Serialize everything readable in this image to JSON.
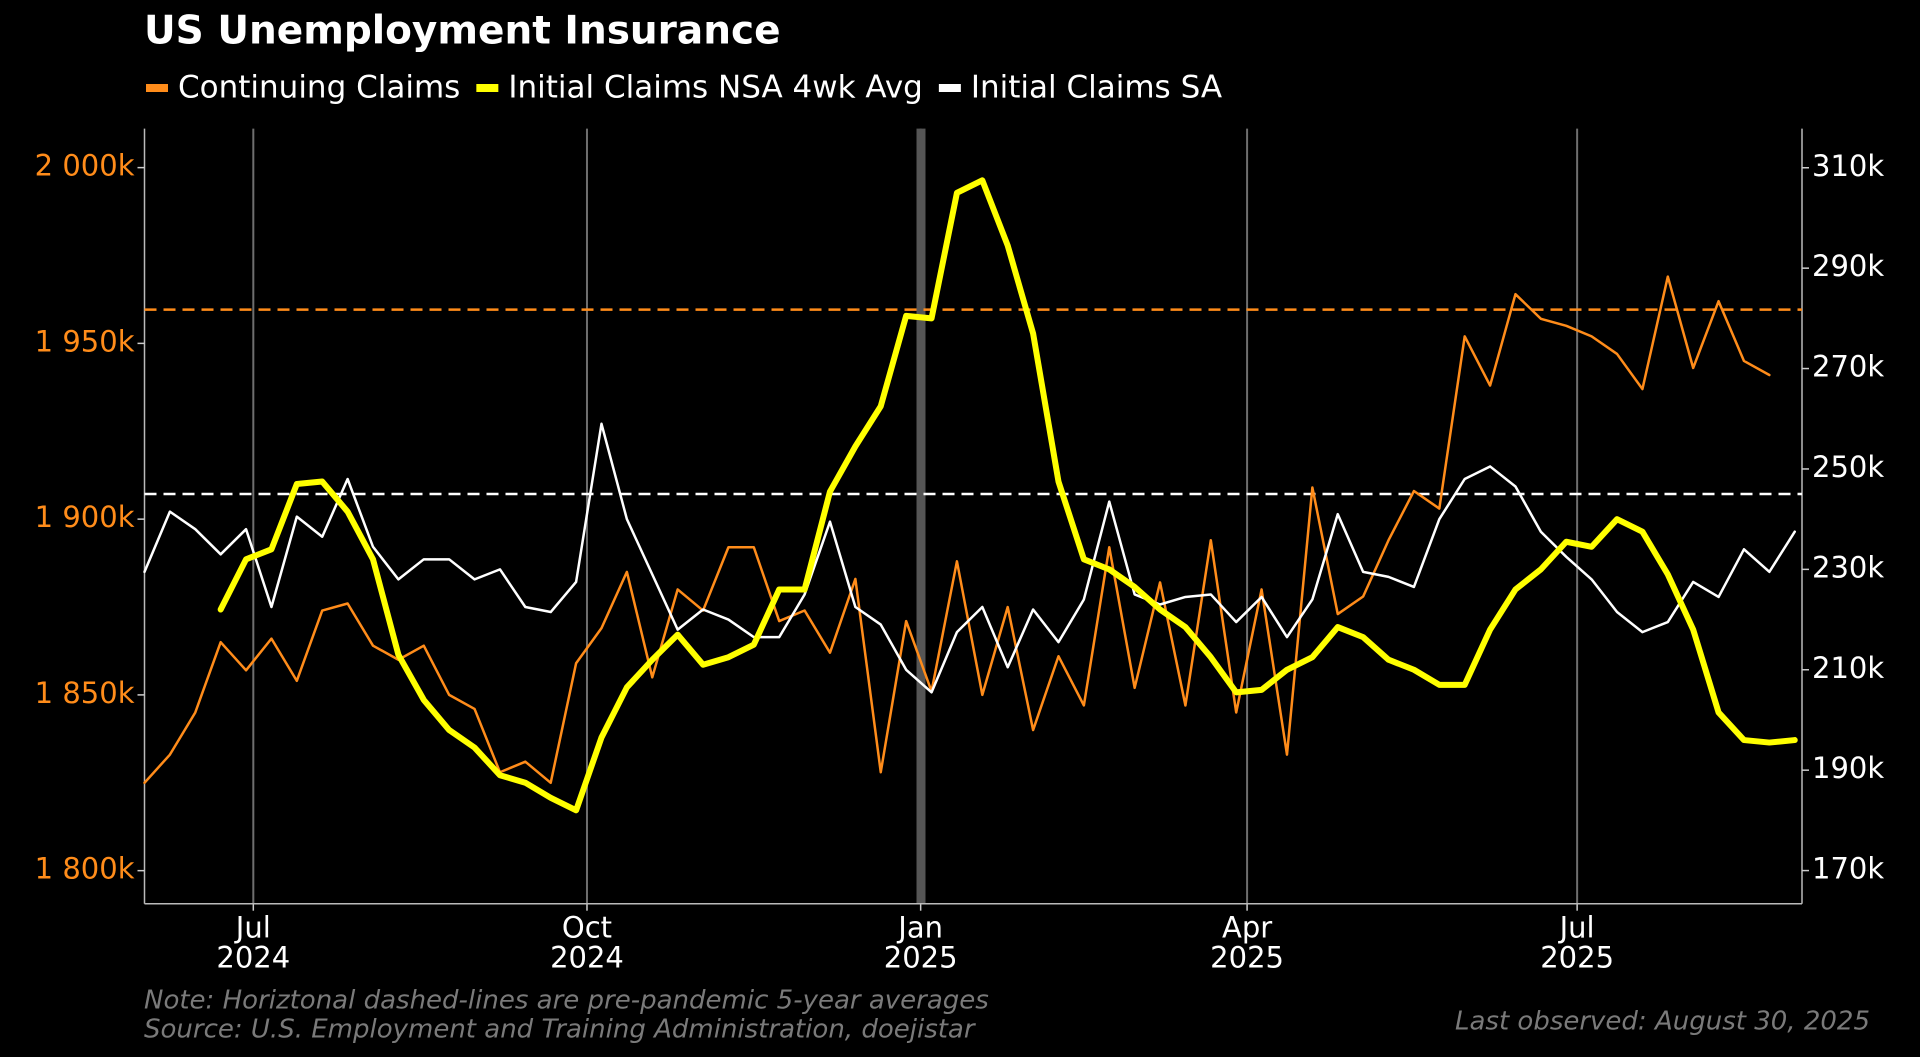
{
  "chart_data": {
    "type": "line",
    "title": "US Unemployment Insurance",
    "notes": [
      "Note: Horiztonal dashed-lines are pre-pandemic 5-year averages",
      "Source: U.S. Employment and Training Administration, doejistar"
    ],
    "last_observed": "Last observed: August 30, 2025",
    "x": [
      "2024-06-01",
      "2024-06-08",
      "2024-06-15",
      "2024-06-22",
      "2024-06-29",
      "2024-07-06",
      "2024-07-13",
      "2024-07-20",
      "2024-07-27",
      "2024-08-03",
      "2024-08-10",
      "2024-08-17",
      "2024-08-24",
      "2024-08-31",
      "2024-09-07",
      "2024-09-14",
      "2024-09-21",
      "2024-09-28",
      "2024-10-05",
      "2024-10-12",
      "2024-10-19",
      "2024-10-26",
      "2024-11-02",
      "2024-11-09",
      "2024-11-16",
      "2024-11-23",
      "2024-11-30",
      "2024-12-07",
      "2024-12-14",
      "2024-12-21",
      "2024-12-28",
      "2025-01-04",
      "2025-01-11",
      "2025-01-18",
      "2025-01-25",
      "2025-02-01",
      "2025-02-08",
      "2025-02-15",
      "2025-02-22",
      "2025-03-01",
      "2025-03-08",
      "2025-03-15",
      "2025-03-22",
      "2025-03-29",
      "2025-04-05",
      "2025-04-12",
      "2025-04-19",
      "2025-04-26",
      "2025-05-03",
      "2025-05-10",
      "2025-05-17",
      "2025-05-24",
      "2025-05-31",
      "2025-06-07",
      "2025-06-14",
      "2025-06-21",
      "2025-06-28",
      "2025-07-05",
      "2025-07-12",
      "2025-07-19",
      "2025-07-26",
      "2025-08-02",
      "2025-08-09",
      "2025-08-16",
      "2025-08-23",
      "2025-08-30"
    ],
    "xlim": [
      "2024-06-01",
      "2025-09-01"
    ],
    "xticks": [
      {
        "value": "2024-07",
        "label": [
          "Jul",
          "2024"
        ]
      },
      {
        "value": "2024-10",
        "label": [
          "Oct",
          "2024"
        ]
      },
      {
        "value": "2025-01",
        "label": [
          "Jan",
          "2025"
        ]
      },
      {
        "value": "2025-04",
        "label": [
          "Apr",
          "2025"
        ]
      },
      {
        "value": "2025-07",
        "label": [
          "Jul",
          "2025"
        ]
      }
    ],
    "ylim": [
      1790600,
      2011100
    ],
    "yticks": [
      {
        "value": 1800000,
        "label": "1 800k"
      },
      {
        "value": 1850000,
        "label": "1 850k"
      },
      {
        "value": 1900000,
        "label": "1 900k"
      },
      {
        "value": 1950000,
        "label": "1 950k"
      },
      {
        "value": 2000000,
        "label": "2 000k"
      }
    ],
    "y2lim": [
      163400,
      317800
    ],
    "y2ticks": [
      {
        "value": 170000,
        "label": "170k"
      },
      {
        "value": 190000,
        "label": "190k"
      },
      {
        "value": 210000,
        "label": "210k"
      },
      {
        "value": 230000,
        "label": "230k"
      },
      {
        "value": 250000,
        "label": "250k"
      },
      {
        "value": 270000,
        "label": "270k"
      },
      {
        "value": 290000,
        "label": "290k"
      },
      {
        "value": 310000,
        "label": "310k"
      }
    ],
    "grid": true,
    "reference_lines": [
      {
        "value": 1959600,
        "axis": "y",
        "color": "#ff8c1a"
      },
      {
        "value": 245000,
        "axis": "y2",
        "color": "#ffffff"
      }
    ],
    "series": [
      {
        "name": "Continuing Claims",
        "color": "#ff8c1a",
        "axis": "y",
        "values": [
          1825000,
          1833000,
          1845000,
          1865000,
          1857000,
          1866000,
          1854000,
          1874000,
          1876000,
          1864000,
          1860000,
          1864000,
          1850000,
          1846000,
          1828000,
          1831000,
          1825000,
          1859000,
          1869000,
          1885000,
          1855000,
          1880000,
          1874000,
          1892000,
          1892000,
          1871000,
          1874000,
          1862000,
          1883000,
          1828000,
          1871000,
          1851000,
          1888000,
          1850000,
          1875000,
          1840000,
          1861000,
          1847000,
          1892000,
          1852000,
          1882000,
          1847000,
          1894000,
          1845000,
          1880000,
          1833000,
          1909000,
          1873000,
          1878000,
          1894000,
          1908000,
          1903000,
          1952000,
          1938000,
          1964000,
          1957000,
          1955000,
          1952000,
          1947000,
          1937000,
          1969000,
          1943000,
          1962000,
          1945000,
          1941000,
          null
        ]
      },
      {
        "name": "Initial Claims NSA 4wk Avg",
        "color": "#ffff00",
        "axis": "y2",
        "values": [
          null,
          null,
          null,
          222000,
          232000,
          234000,
          247000,
          247500,
          241500,
          232000,
          213000,
          204000,
          198000,
          194500,
          189000,
          187500,
          184500,
          182000,
          196500,
          206500,
          212000,
          217000,
          211000,
          212500,
          215000,
          226000,
          226000,
          245500,
          254500,
          262500,
          280500,
          280000,
          305000,
          307500,
          294500,
          277000,
          247500,
          232000,
          230000,
          226500,
          222000,
          218500,
          212500,
          205500,
          206000,
          210000,
          212500,
          218500,
          216500,
          212000,
          210000,
          207000,
          207000,
          218000,
          226000,
          230000,
          235500,
          234500,
          240000,
          237500,
          229000,
          218000,
          201500,
          196000,
          195500,
          196000
        ]
      },
      {
        "name": "Initial Claims SA",
        "color": "#ffffff",
        "axis": "y2",
        "values": [
          229500,
          241500,
          238000,
          233000,
          238000,
          222500,
          240500,
          236500,
          248000,
          234500,
          228000,
          232000,
          232000,
          228000,
          230000,
          222500,
          221500,
          227500,
          259000,
          240000,
          229000,
          218000,
          222000,
          220000,
          216500,
          216500,
          225000,
          239500,
          222500,
          219000,
          210000,
          205500,
          217500,
          222500,
          210500,
          222000,
          215500,
          224000,
          243500,
          225000,
          223000,
          224500,
          225000,
          219500,
          224500,
          216500,
          224000,
          241000,
          229500,
          228500,
          226500,
          240000,
          248000,
          250500,
          246500,
          237500,
          232500,
          228000,
          221500,
          217500,
          219500,
          227500,
          224500,
          234000,
          229500,
          237500
        ]
      }
    ]
  }
}
